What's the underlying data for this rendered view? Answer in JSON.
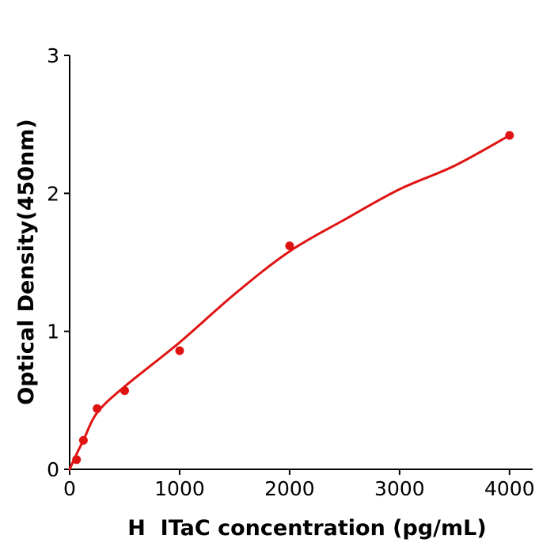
{
  "chart_data": {
    "type": "scatter",
    "title": "",
    "xlabel": "H  ITaC concentration (pg/mL)",
    "ylabel": "Optical Density(450nm)",
    "x_tick_values": [
      0,
      1000,
      2000,
      3000,
      4000
    ],
    "x_tick_labels": [
      "0",
      "1000",
      "2000",
      "3000",
      "4000"
    ],
    "y_tick_values": [
      0,
      1,
      2,
      3
    ],
    "y_tick_labels": [
      "0",
      "1",
      "2",
      "3"
    ],
    "xlim": [
      0,
      4210
    ],
    "ylim": [
      0,
      3
    ],
    "grid": false,
    "legend": false,
    "colors": {
      "points": "#e01313",
      "curve": "#e01313",
      "axis": "#000000"
    },
    "series": [
      {
        "name": "standard-points",
        "type": "scatter",
        "x": [
          62.5,
          125,
          250,
          500,
          1000,
          2000,
          4000
        ],
        "y": [
          0.07,
          0.21,
          0.44,
          0.57,
          0.86,
          1.62,
          2.42
        ]
      },
      {
        "name": "fitted-curve",
        "type": "line",
        "x": [
          0,
          62.5,
          125,
          250,
          500,
          1000,
          1500,
          2000,
          2500,
          3000,
          3500,
          4000
        ],
        "y": [
          0,
          0.11,
          0.21,
          0.41,
          0.6,
          0.92,
          1.27,
          1.58,
          1.81,
          2.03,
          2.2,
          2.42
        ]
      }
    ]
  }
}
